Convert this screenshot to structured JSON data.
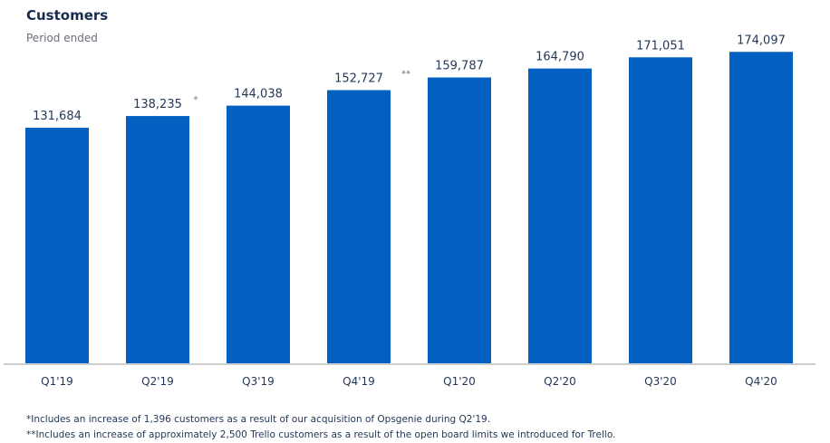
{
  "chart_data": {
    "type": "bar",
    "title": "Customers",
    "subtitle": "Period ended",
    "xlabel": "",
    "ylabel": "",
    "ylim": [
      0,
      180000
    ],
    "grid": false,
    "categories": [
      "Q1'19",
      "Q2'19",
      "Q3'19",
      "Q4'19",
      "Q1'20",
      "Q2'20",
      "Q3'20",
      "Q4'20"
    ],
    "values": [
      131684,
      138235,
      144038,
      152727,
      159787,
      164790,
      171051,
      174097
    ],
    "data_labels": [
      "131,684",
      "138,235",
      "144,038",
      "152,727",
      "159,787",
      "164,790",
      "171,051",
      "174,097"
    ],
    "annotations": [
      "",
      "*",
      "",
      "**",
      "",
      "",
      "",
      ""
    ],
    "bar_color": "#0160c0",
    "footnotes": [
      "*Includes an increase of 1,396 customers as a result of our acquisition of Opsgenie during Q2'19.",
      "**Includes an increase of approximately 2,500 Trello customers as a result of the open board limits we introduced for Trello."
    ]
  }
}
